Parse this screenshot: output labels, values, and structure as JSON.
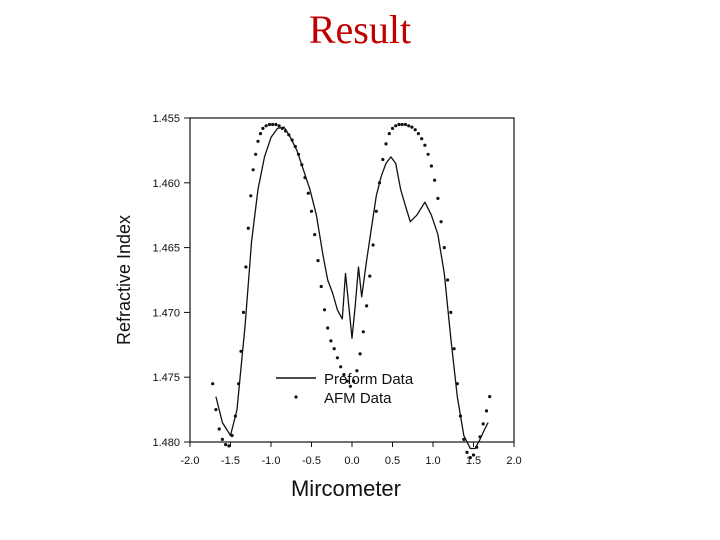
{
  "slide": {
    "title": "Result"
  },
  "chart_data": {
    "type": "line",
    "xlabel": "Mircometer",
    "ylabel": "Refractive Index",
    "xlim": [
      -2.0,
      2.0
    ],
    "ylim": [
      1.455,
      1.48
    ],
    "y_inverted": true,
    "grid": false,
    "legend_placement": "bottom-center",
    "x_ticks": [
      "-2.0",
      "-1.5",
      "-1.0",
      "-0.5",
      "0.0",
      "0.5",
      "1.0",
      "1.5",
      "2.0"
    ],
    "y_ticks": [
      "1.455",
      "1.460",
      "1.465",
      "1.470",
      "1.475",
      "1.480"
    ],
    "series": [
      {
        "name": "Preform Data",
        "style": "line",
        "color": "#111111",
        "x": [
          -1.68,
          -1.6,
          -1.5,
          -1.42,
          -1.32,
          -1.24,
          -1.16,
          -1.08,
          -1.0,
          -0.92,
          -0.84,
          -0.76,
          -0.68,
          -0.6,
          -0.52,
          -0.44,
          -0.36,
          -0.3,
          -0.24,
          -0.18,
          -0.12,
          -0.08,
          -0.04,
          0.0,
          0.04,
          0.08,
          0.12,
          0.18,
          0.24,
          0.3,
          0.36,
          0.42,
          0.48,
          0.54,
          0.6,
          0.66,
          0.72,
          0.8,
          0.9,
          0.98,
          1.06,
          1.14,
          1.22,
          1.3,
          1.38,
          1.46,
          1.52,
          1.58,
          1.64,
          1.68
        ],
        "y": [
          1.4765,
          1.4785,
          1.4795,
          1.4775,
          1.471,
          1.4645,
          1.4605,
          1.458,
          1.4565,
          1.4558,
          1.4557,
          1.4565,
          1.4575,
          1.459,
          1.4605,
          1.4625,
          1.4655,
          1.4675,
          1.4685,
          1.4698,
          1.4705,
          1.467,
          1.4695,
          1.472,
          1.4695,
          1.4665,
          1.4688,
          1.466,
          1.4635,
          1.461,
          1.4595,
          1.4585,
          1.458,
          1.4585,
          1.4605,
          1.4618,
          1.463,
          1.4625,
          1.4615,
          1.4625,
          1.464,
          1.467,
          1.472,
          1.4765,
          1.4795,
          1.4805,
          1.4805,
          1.4798,
          1.479,
          1.4785
        ]
      },
      {
        "name": "AFM Data",
        "style": "points",
        "color": "#111111",
        "x": [
          -1.72,
          -1.68,
          -1.64,
          -1.6,
          -1.56,
          -1.52,
          -1.48,
          -1.44,
          -1.4,
          -1.37,
          -1.34,
          -1.31,
          -1.28,
          -1.25,
          -1.22,
          -1.19,
          -1.16,
          -1.13,
          -1.1,
          -1.06,
          -1.02,
          -0.98,
          -0.94,
          -0.9,
          -0.86,
          -0.82,
          -0.78,
          -0.74,
          -0.7,
          -0.66,
          -0.62,
          -0.58,
          -0.54,
          -0.5,
          -0.46,
          -0.42,
          -0.38,
          -0.34,
          -0.3,
          -0.26,
          -0.22,
          -0.18,
          -0.14,
          -0.1,
          -0.06,
          -0.02,
          0.02,
          0.06,
          0.1,
          0.14,
          0.18,
          0.22,
          0.26,
          0.3,
          0.34,
          0.38,
          0.42,
          0.46,
          0.5,
          0.54,
          0.58,
          0.62,
          0.66,
          0.7,
          0.74,
          0.78,
          0.82,
          0.86,
          0.9,
          0.94,
          0.98,
          1.02,
          1.06,
          1.1,
          1.14,
          1.18,
          1.22,
          1.26,
          1.3,
          1.34,
          1.38,
          1.42,
          1.46,
          1.5,
          1.54,
          1.58,
          1.62,
          1.66,
          1.7
        ],
        "y": [
          1.4755,
          1.4775,
          1.479,
          1.4798,
          1.4802,
          1.4803,
          1.4795,
          1.478,
          1.4755,
          1.473,
          1.47,
          1.4665,
          1.4635,
          1.461,
          1.459,
          1.4578,
          1.4568,
          1.4562,
          1.4558,
          1.4556,
          1.4555,
          1.4555,
          1.4555,
          1.4556,
          1.4558,
          1.456,
          1.4563,
          1.4567,
          1.4572,
          1.4578,
          1.4586,
          1.4596,
          1.4608,
          1.4622,
          1.464,
          1.466,
          1.468,
          1.4698,
          1.4712,
          1.4722,
          1.4728,
          1.4735,
          1.4742,
          1.4748,
          1.4753,
          1.4757,
          1.4753,
          1.4745,
          1.4732,
          1.4715,
          1.4695,
          1.4672,
          1.4648,
          1.4622,
          1.46,
          1.4582,
          1.457,
          1.4562,
          1.4558,
          1.4556,
          1.4555,
          1.4555,
          1.4555,
          1.4556,
          1.4557,
          1.4559,
          1.4562,
          1.4566,
          1.4571,
          1.4578,
          1.4587,
          1.4598,
          1.4612,
          1.463,
          1.465,
          1.4675,
          1.47,
          1.4728,
          1.4755,
          1.478,
          1.4798,
          1.4808,
          1.4812,
          1.481,
          1.4804,
          1.4796,
          1.4786,
          1.4776,
          1.4765
        ]
      }
    ]
  }
}
